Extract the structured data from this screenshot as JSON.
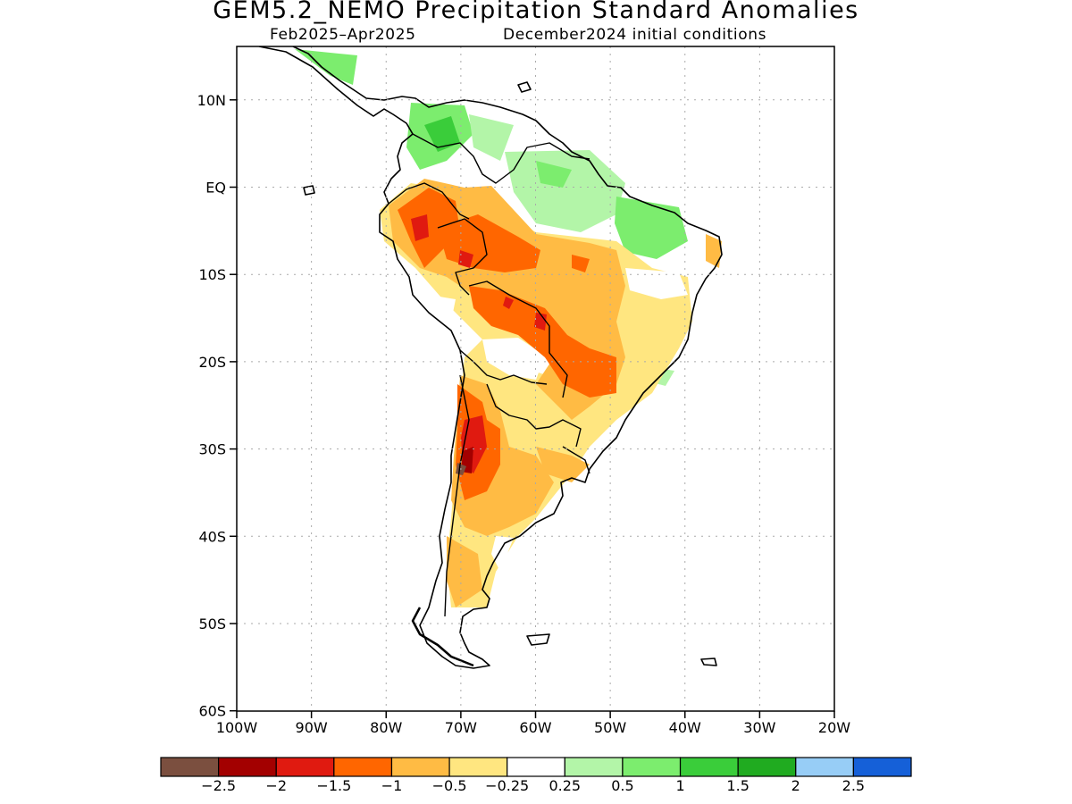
{
  "title": "GEM5.2_NEMO Precipitation Standard Anomalies",
  "subtitle_period": "Feb2025–Apr2025",
  "subtitle_init": "December2024 initial conditions",
  "map": {
    "lon_range": [
      -100,
      -20
    ],
    "lat_range": [
      -60,
      16
    ],
    "grid": true,
    "lat_ticks": [
      {
        "value": 10,
        "label": "10N"
      },
      {
        "value": 0,
        "label": "EQ"
      },
      {
        "value": -10,
        "label": "10S"
      },
      {
        "value": -20,
        "label": "20S"
      },
      {
        "value": -30,
        "label": "30S"
      },
      {
        "value": -40,
        "label": "40S"
      },
      {
        "value": -50,
        "label": "50S"
      },
      {
        "value": -60,
        "label": "60S"
      }
    ],
    "lon_ticks": [
      {
        "value": -100,
        "label": "100W"
      },
      {
        "value": -90,
        "label": "90W"
      },
      {
        "value": -80,
        "label": "80W"
      },
      {
        "value": -70,
        "label": "70W"
      },
      {
        "value": -60,
        "label": "60W"
      },
      {
        "value": -50,
        "label": "50W"
      },
      {
        "value": -40,
        "label": "40W"
      },
      {
        "value": -30,
        "label": "30W"
      },
      {
        "value": -20,
        "label": "20W"
      }
    ]
  },
  "colorbar": {
    "colors": [
      "#7b4f3f",
      "#a30000",
      "#e01a10",
      "#ff6600",
      "#ffbb44",
      "#ffe680",
      "#ffffff",
      "#b3f5a8",
      "#7ced6e",
      "#3acd3a",
      "#20ab20",
      "#97cdf6",
      "#1560d8"
    ],
    "labels": [
      "−2.5",
      "−2",
      "−1.5",
      "−1",
      "−0.5",
      "−0.25",
      "0.25",
      "0.5",
      "1",
      "1.5",
      "2",
      "2.5"
    ]
  }
}
